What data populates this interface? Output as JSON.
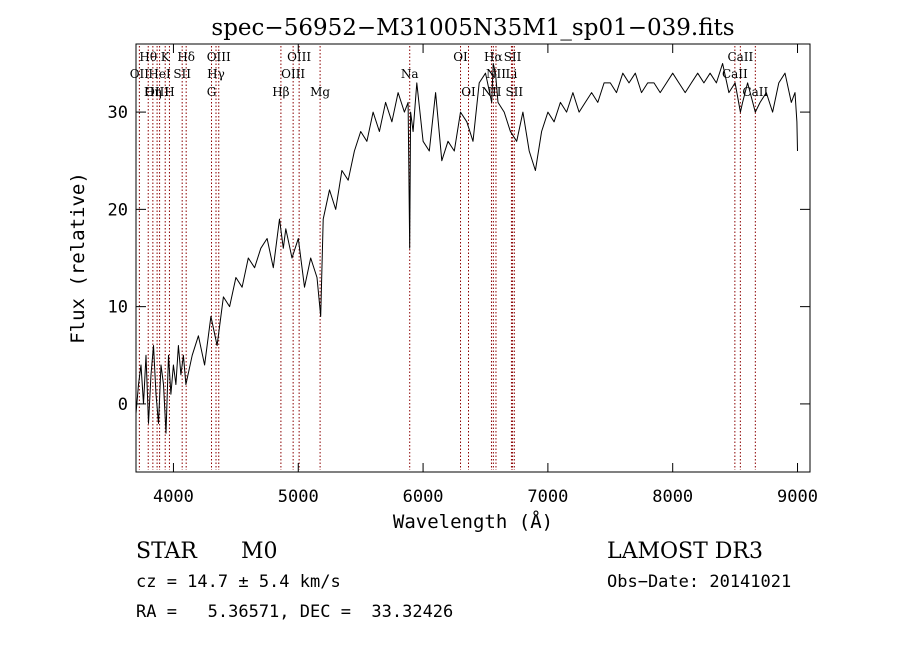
{
  "chart_data": {
    "type": "line",
    "title": "spec−56952−M31005N35M1_sp01−039.fits",
    "xlabel": "Wavelength (Å)",
    "ylabel": "Flux (relative)",
    "xlim": [
      3700,
      9100
    ],
    "ylim": [
      -7,
      37
    ],
    "xticks": [
      {
        "value": 4000,
        "label": "4000"
      },
      {
        "value": 5000,
        "label": "5000"
      },
      {
        "value": 6000,
        "label": "6000"
      },
      {
        "value": 7000,
        "label": "7000"
      },
      {
        "value": 8000,
        "label": "8000"
      },
      {
        "value": 9000,
        "label": "9000"
      }
    ],
    "yticks": [
      {
        "value": 0,
        "label": "0"
      },
      {
        "value": 10,
        "label": "10"
      },
      {
        "value": 20,
        "label": "20"
      },
      {
        "value": 30,
        "label": "30"
      }
    ],
    "series": [
      {
        "name": "flux",
        "x": [
          3700,
          3720,
          3740,
          3760,
          3780,
          3800,
          3820,
          3840,
          3860,
          3880,
          3900,
          3920,
          3940,
          3960,
          3980,
          4000,
          4020,
          4040,
          4060,
          4080,
          4100,
          4150,
          4200,
          4250,
          4300,
          4350,
          4400,
          4450,
          4500,
          4550,
          4600,
          4650,
          4700,
          4750,
          4800,
          4850,
          4880,
          4900,
          4950,
          5000,
          5050,
          5100,
          5150,
          5180,
          5200,
          5250,
          5300,
          5350,
          5400,
          5450,
          5500,
          5550,
          5600,
          5650,
          5700,
          5750,
          5800,
          5850,
          5880,
          5893,
          5900,
          5920,
          5950,
          6000,
          6050,
          6100,
          6150,
          6200,
          6250,
          6300,
          6350,
          6400,
          6450,
          6500,
          6550,
          6562,
          6580,
          6600,
          6650,
          6700,
          6750,
          6800,
          6850,
          6900,
          6950,
          7000,
          7050,
          7100,
          7150,
          7200,
          7250,
          7300,
          7350,
          7400,
          7450,
          7500,
          7550,
          7600,
          7650,
          7700,
          7750,
          7800,
          7850,
          7900,
          7950,
          8000,
          8050,
          8100,
          8150,
          8200,
          8250,
          8300,
          8350,
          8400,
          8450,
          8500,
          8542,
          8560,
          8600,
          8662,
          8700,
          8750,
          8800,
          8850,
          8900,
          8950,
          8980,
          8995,
          9000
        ],
        "y": [
          -1,
          2,
          4,
          0,
          5,
          -2,
          3,
          6,
          1,
          -2,
          4,
          2,
          -3,
          5,
          1,
          4,
          2,
          6,
          3,
          5,
          2,
          5,
          7,
          4,
          9,
          6,
          11,
          10,
          13,
          12,
          15,
          14,
          16,
          17,
          14,
          19,
          16,
          18,
          15,
          17,
          12,
          15,
          13,
          9,
          19,
          22,
          20,
          24,
          23,
          26,
          28,
          27,
          30,
          28,
          31,
          29,
          32,
          30,
          31,
          16,
          30,
          28,
          33,
          27,
          26,
          32,
          25,
          27,
          26,
          30,
          29,
          27,
          33,
          34,
          31,
          35,
          34,
          31,
          30,
          28,
          27,
          30,
          26,
          24,
          28,
          30,
          29,
          31,
          30,
          32,
          30,
          31,
          32,
          31,
          33,
          33,
          32,
          34,
          33,
          34,
          32,
          33,
          33,
          32,
          33,
          34,
          33,
          32,
          33,
          34,
          33,
          34,
          33,
          35,
          32,
          33,
          30,
          31,
          33,
          30,
          31,
          32,
          30,
          33,
          34,
          31,
          32,
          29,
          26
        ]
      }
    ],
    "lines": [
      {
        "name": "Hθ",
        "x": 3798,
        "row": 1
      },
      {
        "name": "OII",
        "x": 3727,
        "row": 2
      },
      {
        "name": "OIII",
        "x": 3869,
        "row": 3
      },
      {
        "name": "HeI",
        "x": 3889,
        "row": 2
      },
      {
        "name": "K",
        "x": 3934,
        "row": 1
      },
      {
        "name": "Hη",
        "x": 3835,
        "row": 3
      },
      {
        "name": "H",
        "x": 3968,
        "row": 3
      },
      {
        "name": "SII",
        "x": 4070,
        "row": 2
      },
      {
        "name": "Hδ",
        "x": 4102,
        "row": 1
      },
      {
        "name": "OIII",
        "x": 4363,
        "row": 1
      },
      {
        "name": "Hγ",
        "x": 4341,
        "row": 2
      },
      {
        "name": "G",
        "x": 4305,
        "row": 3
      },
      {
        "name": "Hβ",
        "x": 4861,
        "row": 3
      },
      {
        "name": "OIII",
        "x": 5007,
        "row": 1
      },
      {
        "name": "OIII",
        "x": 4959,
        "row": 2
      },
      {
        "name": "Mg",
        "x": 5175,
        "row": 3
      },
      {
        "name": "Na",
        "x": 5893,
        "row": 2
      },
      {
        "name": "OI",
        "x": 6300,
        "row": 1
      },
      {
        "name": "OI",
        "x": 6364,
        "row": 3
      },
      {
        "name": "Hα",
        "x": 6563,
        "row": 1
      },
      {
        "name": "NII",
        "x": 6584,
        "row": 2
      },
      {
        "name": "NII",
        "x": 6548,
        "row": 3
      },
      {
        "name": "SII",
        "x": 6717,
        "row": 1
      },
      {
        "name": "Li",
        "x": 6708,
        "row": 2
      },
      {
        "name": "SII",
        "x": 6731,
        "row": 3
      },
      {
        "name": "CaII",
        "x": 8542,
        "row": 1
      },
      {
        "name": "CaII",
        "x": 8498,
        "row": 2
      },
      {
        "name": "CaII",
        "x": 8662,
        "row": 3
      }
    ]
  },
  "info": {
    "object_class": "STAR",
    "subclass": "M0",
    "survey": "LAMOST DR3",
    "redshift": "cz = 14.7 ± 5.4 km/s",
    "obs_date": "Obs−Date: 20141021",
    "coords": "RA =   5.36571, DEC =  33.32426"
  }
}
